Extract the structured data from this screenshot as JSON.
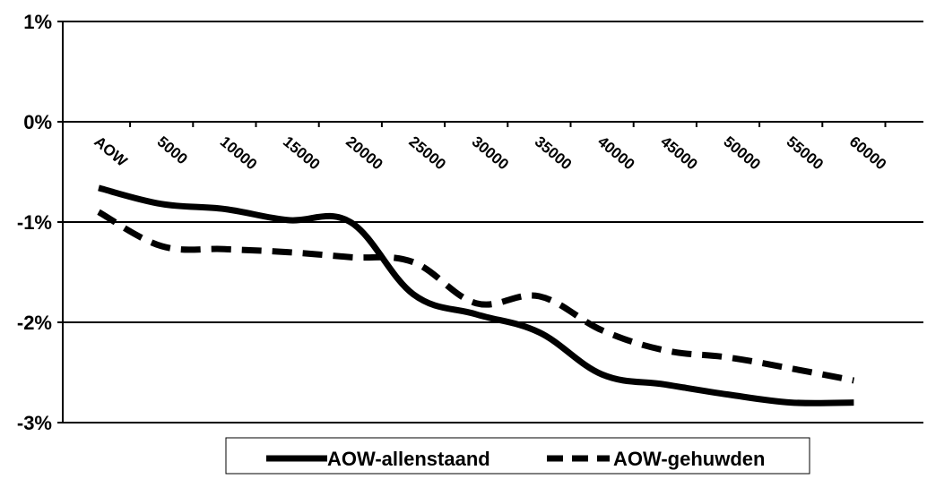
{
  "chart_data": {
    "type": "line",
    "categories": [
      "AOW",
      "5000",
      "10000",
      "15000",
      "20000",
      "25000",
      "30000",
      "35000",
      "40000",
      "45000",
      "50000",
      "55000",
      "60000"
    ],
    "y_ticks": [
      "1%",
      "0%",
      "-1%",
      "-2%",
      "-3%"
    ],
    "y_tick_values": [
      1,
      0,
      -1,
      -2,
      -3
    ],
    "ylim": [
      -3,
      1
    ],
    "y_unit": "%",
    "grid": true,
    "legend_position": "bottom",
    "series": [
      {
        "name": "AOW-allenstaand",
        "style": "solid",
        "color": "#000000",
        "values": [
          -0.66,
          -0.82,
          -0.87,
          -0.98,
          -1.0,
          -1.72,
          -1.92,
          -2.1,
          -2.52,
          -2.62,
          -2.72,
          -2.8,
          -2.8
        ]
      },
      {
        "name": "AOW-gehuwden",
        "style": "dashed",
        "color": "#000000",
        "values": [
          -0.9,
          -1.24,
          -1.27,
          -1.3,
          -1.35,
          -1.4,
          -1.81,
          -1.74,
          -2.08,
          -2.28,
          -2.35,
          -2.46,
          -2.58
        ]
      }
    ]
  }
}
